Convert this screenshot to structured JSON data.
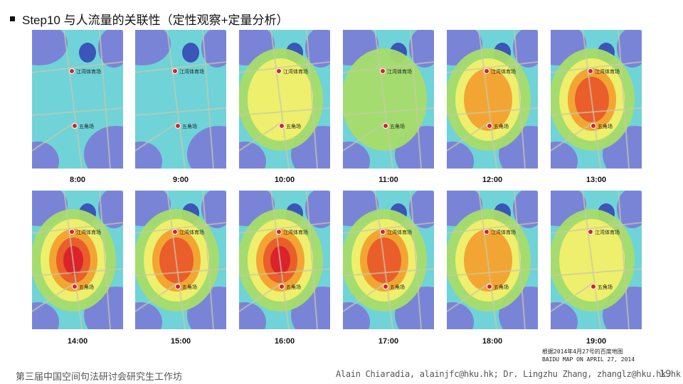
{
  "slide": {
    "title": "Step10 与人流量的关联性（定性观察+定量分析）",
    "note_line1": "根据2014年4月27号的百度地图",
    "note_line2": "BAIDU MAP ON APRIL 27, 2014",
    "footer_left": "第三届中国空间句法研讨会研究生工作坊",
    "footer_right": "Alain Chiaradia, alainjfc@hku.hk; Dr. Lingzhu Zhang, zhanglz@hku.hk.hk",
    "page_number": "19"
  },
  "colors": {
    "level0": "#7a84d6",
    "level1": "#6fd3d8",
    "level2": "#a6dc6a",
    "level3": "#f2ef6b",
    "level4": "#f2a030",
    "level5": "#e85a2a",
    "level6": "#d9202a"
  },
  "panels": [
    {
      "time": "8:00",
      "intensity": 1
    },
    {
      "time": "9:00",
      "intensity": 1
    },
    {
      "time": "10:00",
      "intensity": 3
    },
    {
      "time": "11:00",
      "intensity": 2
    },
    {
      "time": "12:00",
      "intensity": 4
    },
    {
      "time": "13:00",
      "intensity": 5
    },
    {
      "time": "14:00",
      "intensity": 6
    },
    {
      "time": "15:00",
      "intensity": 5
    },
    {
      "time": "16:00",
      "intensity": 6
    },
    {
      "time": "17:00",
      "intensity": 5
    },
    {
      "time": "18:00",
      "intensity": 4
    },
    {
      "time": "19:00",
      "intensity": 3
    }
  ],
  "map_labels": {
    "station_a": "江湾体育场",
    "station_b": "五角场"
  }
}
